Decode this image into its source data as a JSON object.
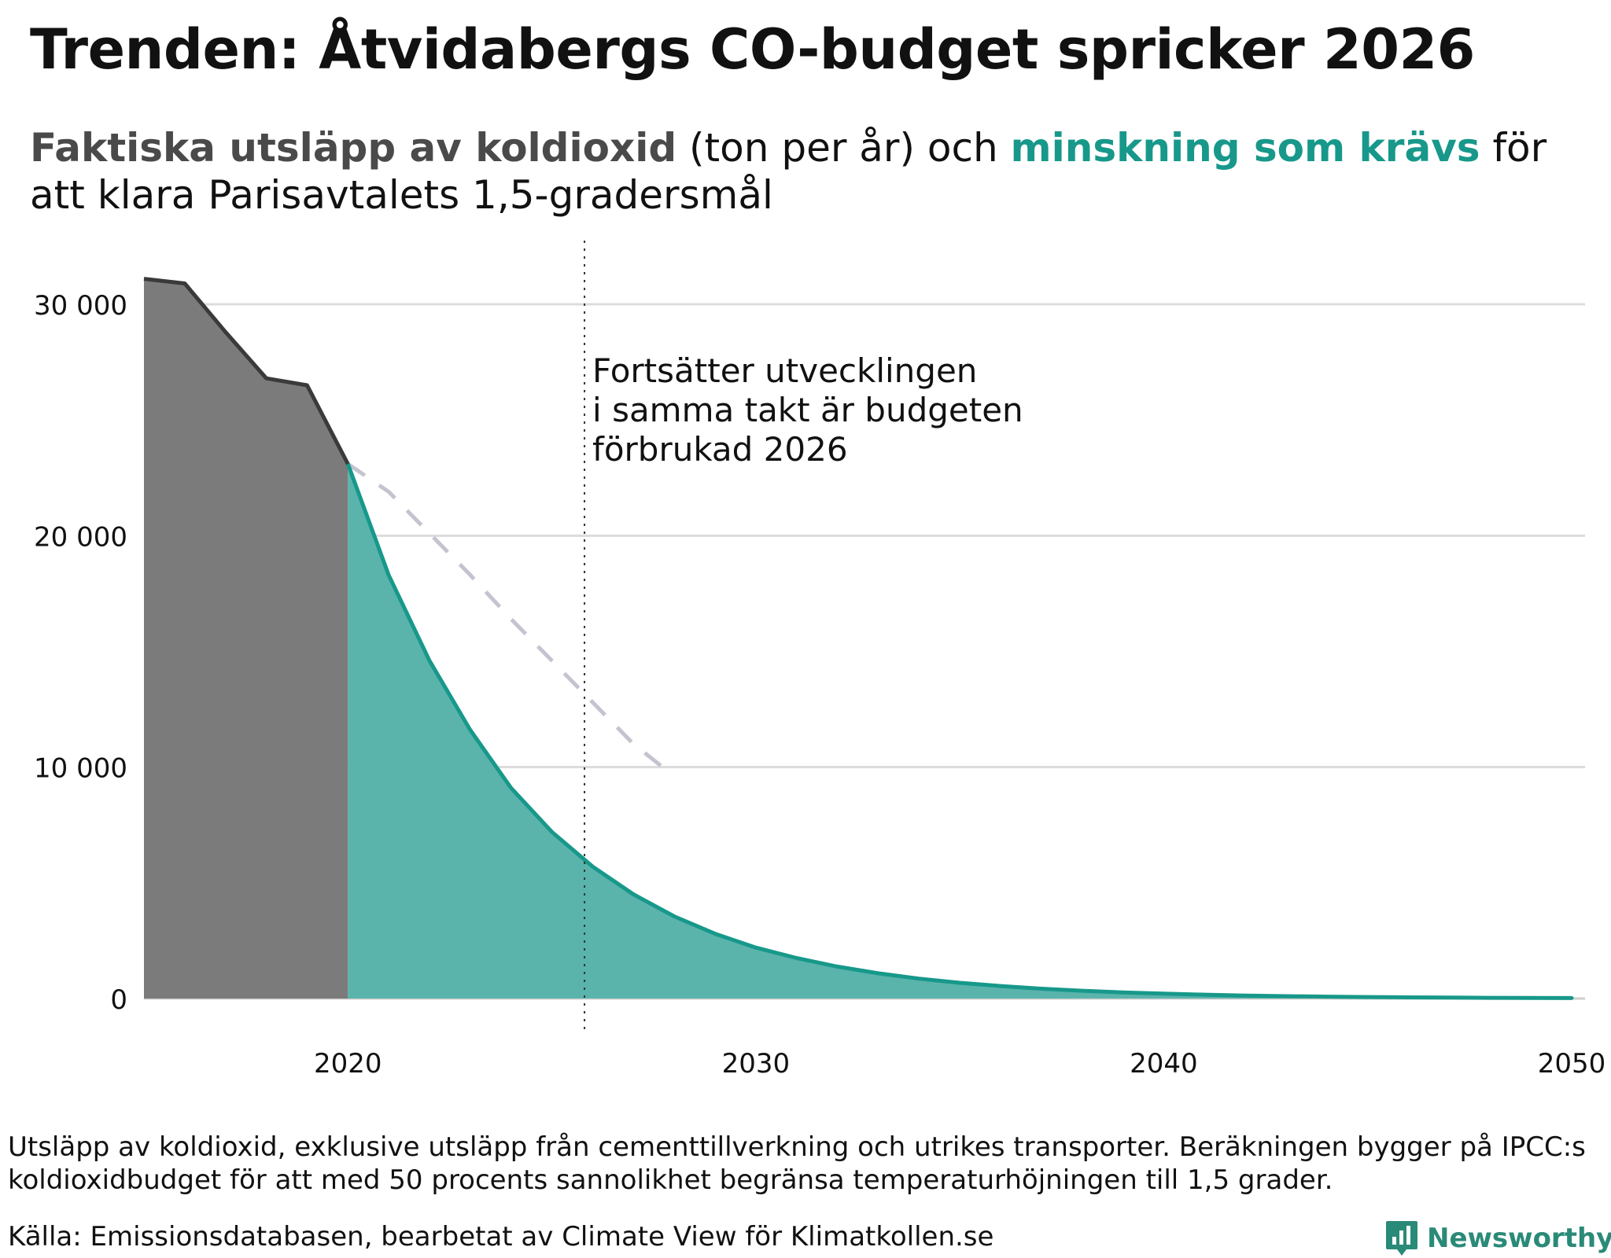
{
  "header": {
    "title": "Trenden: Åtvidabergs CO-budget spricker 2026",
    "subtitle_part1": "Faktiska utsläpp av koldioxid",
    "subtitle_part2": " (ton per år) och ",
    "subtitle_part3": "minskning som krävs",
    "subtitle_part4": " för att klara Parisavtalets 1,5-gradersmål"
  },
  "colors": {
    "actual_fill": "#7b7b7b",
    "actual_line": "#3a3a3a",
    "required_fill": "#5ab4ac",
    "required_line": "#17988a",
    "trend_dash": "#c4c4d0",
    "grid": "#dcdcdc",
    "accent_teal": "#17988a"
  },
  "chart_data": {
    "type": "area",
    "ylabel": "ton per år",
    "ylim": [
      0,
      32000
    ],
    "xlim": [
      2015,
      2050
    ],
    "y_ticks": [
      {
        "value": 0,
        "label": "0"
      },
      {
        "value": 10000,
        "label": "10 000"
      },
      {
        "value": 20000,
        "label": "20 000"
      },
      {
        "value": 30000,
        "label": "30 000"
      }
    ],
    "x_ticks": [
      {
        "value": 2020,
        "label": "2020"
      },
      {
        "value": 2030,
        "label": "2030"
      },
      {
        "value": 2040,
        "label": "2040"
      },
      {
        "value": 2050,
        "label": "2050"
      }
    ],
    "series": [
      {
        "name": "Faktiska utsläpp av koldioxid",
        "x": [
          2015,
          2016,
          2017,
          2018,
          2019,
          2020
        ],
        "values": [
          31100,
          30900,
          28800,
          26800,
          26500,
          23100
        ]
      },
      {
        "name": "Minskning som krävs",
        "x": [
          2020,
          2021,
          2022,
          2023,
          2024,
          2025,
          2026,
          2027,
          2028,
          2029,
          2030,
          2031,
          2032,
          2033,
          2034,
          2035,
          2036,
          2037,
          2038,
          2039,
          2040,
          2041,
          2042,
          2043,
          2044,
          2045,
          2046,
          2047,
          2048,
          2049,
          2050
        ],
        "values": [
          23100,
          18300,
          14600,
          11600,
          9100,
          7200,
          5700,
          4500,
          3550,
          2800,
          2200,
          1750,
          1380,
          1090,
          860,
          680,
          540,
          425,
          335,
          265,
          210,
          165,
          130,
          103,
          81,
          64,
          51,
          40,
          32,
          25,
          20
        ]
      },
      {
        "name": "Trend",
        "x": [
          2020,
          2021,
          2022,
          2023,
          2024,
          2025,
          2026,
          2027,
          2028
        ],
        "values": [
          23100,
          21900,
          20100,
          18300,
          16400,
          14600,
          12800,
          11000,
          9600
        ]
      }
    ],
    "annotation": {
      "x": 2025.8,
      "lines": [
        "Fortsätter utvecklingen",
        "i samma takt är budgeten",
        "förbrukad 2026"
      ]
    }
  },
  "footer": {
    "note": "Utsläpp av koldioxid, exklusive utsläpp från cementtillverkning och utrikes transporter. Beräkningen bygger på IPCC:s koldioxidbudget för att med 50 procents sannolikhet begränsa temperaturhöjningen till 1,5 grader.",
    "source": "Källa: Emissionsdatabasen, bearbetat av Climate View för Klimatkollen.se",
    "logo_text": "Newsworthy"
  }
}
